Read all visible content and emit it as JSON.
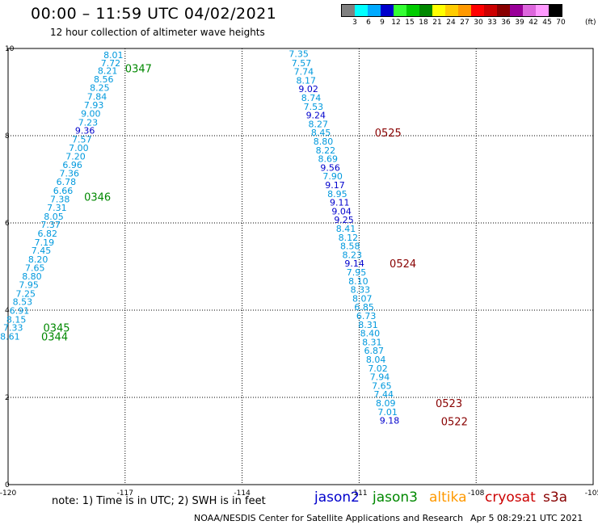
{
  "header": {
    "title": "00:00 – 11:59 UTC 04/02/2021",
    "subtitle": "12 hour collection of altimeter wave heights"
  },
  "legend": {
    "colors": [
      "#808080",
      "#00ffff",
      "#00aaff",
      "#0000cc",
      "#33ff33",
      "#00cc00",
      "#008800",
      "#ffff00",
      "#ffcc00",
      "#ff9900",
      "#ff0000",
      "#cc0000",
      "#880000",
      "#990099",
      "#dd66dd",
      "#ff99ff",
      "#000000"
    ],
    "labels": [
      "3",
      "6",
      "9",
      "12",
      "15",
      "18",
      "21",
      "24",
      "27",
      "30",
      "33",
      "36",
      "39",
      "42",
      "45",
      "70"
    ],
    "unit": "(ft)"
  },
  "footer": {
    "note": "note:  1) Time is in UTC; 2) SWH is in feet",
    "satellites": [
      {
        "name": "jason2",
        "color": "#0000cc"
      },
      {
        "name": "jason3",
        "color": "#008800"
      },
      {
        "name": "altika",
        "color": "#ff9900"
      },
      {
        "name": "cryosat",
        "color": "#cc0000"
      },
      {
        "name": "s3a",
        "color": "#880000"
      }
    ],
    "credit": "NOAA/NESDIS Center for Satellite Applications and Research",
    "generated": "Apr  5 08:29:21 UTC 2021"
  },
  "chart_data": {
    "type": "scatter",
    "xlim": [
      -120,
      -105
    ],
    "ylim": [
      0,
      10
    ],
    "x_ticks": [
      "-120",
      "-117",
      "-114",
      "-111",
      "-108",
      "-105"
    ],
    "y_ticks": [
      "0",
      "2",
      "4",
      "6",
      "8",
      "10"
    ],
    "grid": true,
    "tracks": [
      {
        "color": "#0099dd",
        "points": [
          {
            "x": -117.3,
            "y": 9.85,
            "v": "8.01"
          },
          {
            "x": -117.37,
            "y": 9.67,
            "v": "7.72"
          },
          {
            "x": -117.45,
            "y": 9.49,
            "v": "8.21"
          },
          {
            "x": -117.55,
            "y": 9.3,
            "v": "8.56"
          },
          {
            "x": -117.65,
            "y": 9.1,
            "v": "8.25"
          },
          {
            "x": -117.72,
            "y": 8.9,
            "v": "7.84"
          },
          {
            "x": -117.8,
            "y": 8.7,
            "v": "7.93"
          },
          {
            "x": -117.88,
            "y": 8.51,
            "v": "9.00"
          },
          {
            "x": -117.95,
            "y": 8.31,
            "v": "7.23"
          },
          {
            "x": -118.03,
            "y": 8.12,
            "v": "9.36",
            "c": "#0000cc"
          },
          {
            "x": -118.11,
            "y": 7.92,
            "v": "7.57"
          },
          {
            "x": -118.19,
            "y": 7.72,
            "v": "7.00"
          },
          {
            "x": -118.27,
            "y": 7.53,
            "v": "7.20"
          },
          {
            "x": -118.35,
            "y": 7.33,
            "v": "6.96"
          },
          {
            "x": -118.43,
            "y": 7.14,
            "v": "7.36"
          },
          {
            "x": -118.51,
            "y": 6.94,
            "v": "6.78"
          },
          {
            "x": -118.59,
            "y": 6.74,
            "v": "6.66"
          },
          {
            "x": -118.67,
            "y": 6.55,
            "v": "7.38"
          },
          {
            "x": -118.75,
            "y": 6.35,
            "v": "7.31"
          },
          {
            "x": -118.83,
            "y": 6.15,
            "v": "8.05"
          },
          {
            "x": -118.91,
            "y": 5.96,
            "v": "7.37"
          },
          {
            "x": -118.99,
            "y": 5.76,
            "v": "6.82"
          },
          {
            "x": -119.07,
            "y": 5.56,
            "v": "7.19"
          },
          {
            "x": -119.15,
            "y": 5.37,
            "v": "7.45"
          },
          {
            "x": -119.23,
            "y": 5.17,
            "v": "8.20"
          },
          {
            "x": -119.31,
            "y": 4.97,
            "v": "7.65"
          },
          {
            "x": -119.39,
            "y": 4.78,
            "v": "8.80"
          },
          {
            "x": -119.47,
            "y": 4.58,
            "v": "7.95"
          },
          {
            "x": -119.55,
            "y": 4.38,
            "v": "7.25"
          },
          {
            "x": -119.63,
            "y": 4.19,
            "v": "8.53"
          },
          {
            "x": -119.71,
            "y": 3.99,
            "v": "6.91"
          },
          {
            "x": -119.79,
            "y": 3.79,
            "v": "8.15"
          },
          {
            "x": -119.87,
            "y": 3.6,
            "v": "7.33"
          },
          {
            "x": -119.95,
            "y": 3.4,
            "v": "8.61"
          }
        ],
        "time_labels": [
          {
            "x": -117.0,
            "y": 9.55,
            "t": "0347"
          },
          {
            "x": -118.05,
            "y": 6.6,
            "t": "0346"
          },
          {
            "x": -119.1,
            "y": 3.6,
            "t": "0345"
          },
          {
            "x": -119.15,
            "y": 3.4,
            "t": "0344"
          }
        ],
        "time_color": "#008800"
      },
      {
        "color": "#0099dd",
        "points": [
          {
            "x": -112.55,
            "y": 9.88,
            "v": "7.35"
          },
          {
            "x": -112.48,
            "y": 9.67,
            "v": "7.57"
          },
          {
            "x": -112.42,
            "y": 9.47,
            "v": "7.74"
          },
          {
            "x": -112.36,
            "y": 9.27,
            "v": "8.17"
          },
          {
            "x": -112.3,
            "y": 9.07,
            "v": "9.02",
            "c": "#0000cc"
          },
          {
            "x": -112.23,
            "y": 8.87,
            "v": "8.74"
          },
          {
            "x": -112.17,
            "y": 8.67,
            "v": "7.53"
          },
          {
            "x": -112.11,
            "y": 8.47,
            "v": "9.24",
            "c": "#0000cc"
          },
          {
            "x": -112.05,
            "y": 8.27,
            "v": "8.27"
          },
          {
            "x": -111.98,
            "y": 8.07,
            "v": "8.45"
          },
          {
            "x": -111.92,
            "y": 7.87,
            "v": "8.80"
          },
          {
            "x": -111.86,
            "y": 7.67,
            "v": "8.22"
          },
          {
            "x": -111.8,
            "y": 7.47,
            "v": "8.69"
          },
          {
            "x": -111.74,
            "y": 7.27,
            "v": "9.56",
            "c": "#0000cc"
          },
          {
            "x": -111.68,
            "y": 7.07,
            "v": "7.90"
          },
          {
            "x": -111.62,
            "y": 6.87,
            "v": "9.17",
            "c": "#0000cc"
          },
          {
            "x": -111.56,
            "y": 6.67,
            "v": "8.95"
          },
          {
            "x": -111.5,
            "y": 6.47,
            "v": "9.11",
            "c": "#0000cc"
          },
          {
            "x": -111.45,
            "y": 6.27,
            "v": "9.04",
            "c": "#0000cc"
          },
          {
            "x": -111.39,
            "y": 6.07,
            "v": "9.25",
            "c": "#0000cc"
          },
          {
            "x": -111.34,
            "y": 5.87,
            "v": "8.41"
          },
          {
            "x": -111.28,
            "y": 5.67,
            "v": "8.12"
          },
          {
            "x": -111.23,
            "y": 5.47,
            "v": "8.58"
          },
          {
            "x": -111.18,
            "y": 5.27,
            "v": "8.23"
          },
          {
            "x": -111.12,
            "y": 5.07,
            "v": "9.14",
            "c": "#0000cc"
          },
          {
            "x": -111.07,
            "y": 4.87,
            "v": "7.95"
          },
          {
            "x": -111.02,
            "y": 4.67,
            "v": "8.10"
          },
          {
            "x": -110.97,
            "y": 4.47,
            "v": "8.33"
          },
          {
            "x": -110.92,
            "y": 4.27,
            "v": "8.07"
          },
          {
            "x": -110.87,
            "y": 4.07,
            "v": "6.85"
          },
          {
            "x": -110.82,
            "y": 3.87,
            "v": "6.73"
          },
          {
            "x": -110.77,
            "y": 3.67,
            "v": "8.31"
          },
          {
            "x": -110.72,
            "y": 3.47,
            "v": "8.40"
          },
          {
            "x": -110.67,
            "y": 3.27,
            "v": "8.31"
          },
          {
            "x": -110.62,
            "y": 3.07,
            "v": "6.87"
          },
          {
            "x": -110.57,
            "y": 2.87,
            "v": "8.04"
          },
          {
            "x": -110.52,
            "y": 2.67,
            "v": "7.02"
          },
          {
            "x": -110.47,
            "y": 2.47,
            "v": "7.94"
          },
          {
            "x": -110.42,
            "y": 2.27,
            "v": "7.65"
          },
          {
            "x": -110.37,
            "y": 2.07,
            "v": "7.44"
          },
          {
            "x": -110.32,
            "y": 1.87,
            "v": "8.09"
          },
          {
            "x": -110.27,
            "y": 1.67,
            "v": "7.01"
          },
          {
            "x": -110.22,
            "y": 1.47,
            "v": "9.18",
            "c": "#0000cc"
          }
        ],
        "time_labels": [
          {
            "x": -110.6,
            "y": 8.07,
            "t": "0525"
          },
          {
            "x": -110.22,
            "y": 5.07,
            "t": "0524"
          },
          {
            "x": -109.04,
            "y": 1.87,
            "t": "0523"
          },
          {
            "x": -108.9,
            "y": 1.45,
            "t": "0522"
          }
        ],
        "time_color": "#880000"
      }
    ]
  }
}
